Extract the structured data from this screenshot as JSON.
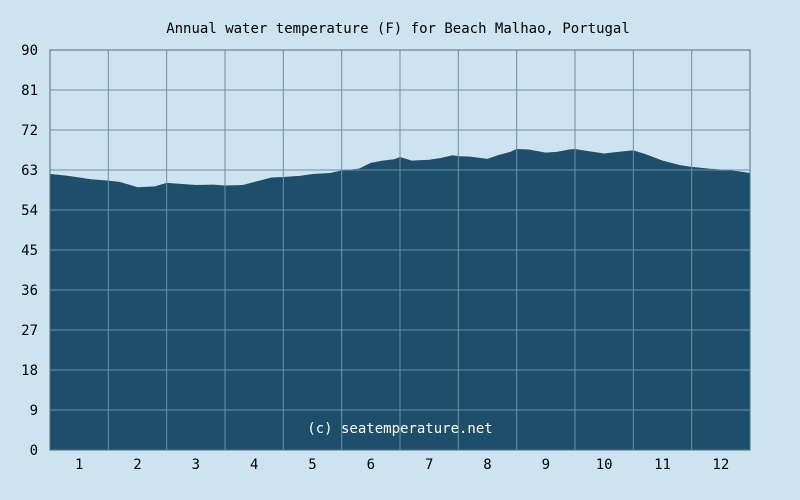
{
  "chart_data": {
    "type": "area",
    "title": "Annual water temperature (F) for Beach Malhao, Portugal",
    "credit": "(c) seatemperature.net",
    "xlabel": "",
    "ylabel": "",
    "ylim": [
      0,
      90
    ],
    "yticks": [
      0,
      9,
      18,
      27,
      36,
      45,
      54,
      63,
      72,
      81,
      90
    ],
    "xlim": [
      0.5,
      12.5
    ],
    "xticks": [
      1,
      2,
      3,
      4,
      5,
      6,
      7,
      8,
      9,
      10,
      11,
      12
    ],
    "grid": true,
    "colors": {
      "background": "#cde3ef",
      "fill": "#1e4f6a",
      "grid": "#6f8fa8"
    },
    "series": [
      {
        "x": [
          0.5,
          0.8,
          1.0,
          1.2,
          1.5,
          1.7,
          2.0,
          2.3,
          2.5,
          2.8,
          3.0,
          3.3,
          3.5,
          3.8,
          4.0,
          4.3,
          4.5,
          4.8,
          5.0,
          5.3,
          5.5,
          5.8,
          6.0,
          6.2,
          6.4,
          6.5,
          6.7,
          7.0,
          7.2,
          7.4,
          7.5,
          7.7,
          8.0,
          8.2,
          8.4,
          8.5,
          8.7,
          9.0,
          9.2,
          9.4,
          9.5,
          9.7,
          10.0,
          10.2,
          10.4,
          10.5,
          10.7,
          11.0,
          11.3,
          11.5,
          11.8,
          12.0,
          12.3,
          12.5
        ],
        "values": [
          62.0,
          61.6,
          61.2,
          60.8,
          60.5,
          60.2,
          59.0,
          59.2,
          60.0,
          59.7,
          59.5,
          59.6,
          59.4,
          59.5,
          60.2,
          61.2,
          61.3,
          61.6,
          62.0,
          62.2,
          62.8,
          63.2,
          64.5,
          65.0,
          65.3,
          65.8,
          65.0,
          65.2,
          65.6,
          66.2,
          66.0,
          65.9,
          65.4,
          66.3,
          67.0,
          67.6,
          67.5,
          66.8,
          67.0,
          67.5,
          67.6,
          67.2,
          66.6,
          66.9,
          67.2,
          67.3,
          66.5,
          65.0,
          64.0,
          63.6,
          63.2,
          63.0,
          62.6,
          62.2
        ]
      }
    ]
  }
}
